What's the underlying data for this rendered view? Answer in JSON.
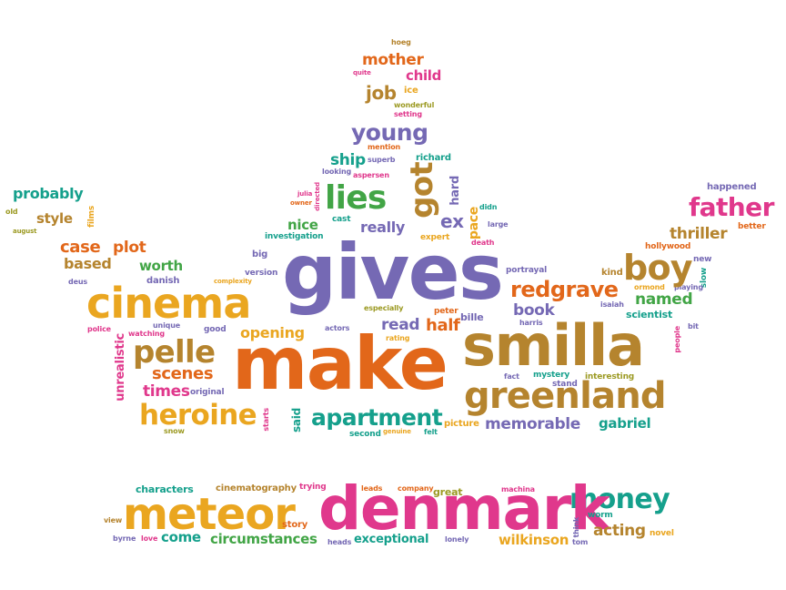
{
  "colors": {
    "purple": "#7569b4",
    "orange": "#e2671a",
    "gold": "#eaa620",
    "brown": "#b5842e",
    "green": "#42a546",
    "teal": "#15a08c",
    "magenta": "#e0388c",
    "olive": "#9c9a23"
  },
  "words": [
    {
      "text": "hoeg",
      "color": "brown"
    },
    {
      "text": "mother",
      "color": "orange"
    },
    {
      "text": "quite",
      "color": "magenta"
    },
    {
      "text": "child",
      "color": "magenta"
    },
    {
      "text": "job",
      "color": "brown"
    },
    {
      "text": "ice",
      "color": "gold"
    },
    {
      "text": "wonderful",
      "color": "olive"
    },
    {
      "text": "setting",
      "color": "magenta"
    },
    {
      "text": "young",
      "color": "purple"
    },
    {
      "text": "mention",
      "color": "orange"
    },
    {
      "text": "ship",
      "color": "teal"
    },
    {
      "text": "superb",
      "color": "purple"
    },
    {
      "text": "richard",
      "color": "teal"
    },
    {
      "text": "looking",
      "color": "purple"
    },
    {
      "text": "aspersen",
      "color": "magenta"
    },
    {
      "text": "got",
      "color": "brown"
    },
    {
      "text": "hard",
      "color": "purple"
    },
    {
      "text": "lies",
      "color": "green"
    },
    {
      "text": "julia",
      "color": "magenta"
    },
    {
      "text": "owner",
      "color": "orange"
    },
    {
      "text": "directed",
      "color": "magenta"
    },
    {
      "text": "cast",
      "color": "teal"
    },
    {
      "text": "didn",
      "color": "teal"
    },
    {
      "text": "ex",
      "color": "purple"
    },
    {
      "text": "pace",
      "color": "gold"
    },
    {
      "text": "large",
      "color": "purple"
    },
    {
      "text": "nice",
      "color": "green"
    },
    {
      "text": "really",
      "color": "purple"
    },
    {
      "text": "investigation",
      "color": "teal"
    },
    {
      "text": "expert",
      "color": "gold"
    },
    {
      "text": "death",
      "color": "magenta"
    },
    {
      "text": "probably",
      "color": "teal"
    },
    {
      "text": "old",
      "color": "olive"
    },
    {
      "text": "style",
      "color": "brown"
    },
    {
      "text": "films",
      "color": "gold"
    },
    {
      "text": "august",
      "color": "olive"
    },
    {
      "text": "case",
      "color": "orange"
    },
    {
      "text": "plot",
      "color": "orange"
    },
    {
      "text": "based",
      "color": "brown"
    },
    {
      "text": "worth",
      "color": "green"
    },
    {
      "text": "big",
      "color": "purple"
    },
    {
      "text": "version",
      "color": "purple"
    },
    {
      "text": "complexity",
      "color": "gold"
    },
    {
      "text": "deus",
      "color": "purple"
    },
    {
      "text": "danish",
      "color": "purple"
    },
    {
      "text": "cinema",
      "color": "gold"
    },
    {
      "text": "gives",
      "color": "purple"
    },
    {
      "text": "happened",
      "color": "purple"
    },
    {
      "text": "father",
      "color": "magenta"
    },
    {
      "text": "better",
      "color": "orange"
    },
    {
      "text": "thriller",
      "color": "brown"
    },
    {
      "text": "hollywood",
      "color": "orange"
    },
    {
      "text": "new",
      "color": "purple"
    },
    {
      "text": "slow",
      "color": "teal"
    },
    {
      "text": "kind",
      "color": "brown"
    },
    {
      "text": "ormond",
      "color": "gold"
    },
    {
      "text": "playing",
      "color": "purple"
    },
    {
      "text": "boy",
      "color": "brown"
    },
    {
      "text": "portrayal",
      "color": "purple"
    },
    {
      "text": "redgrave",
      "color": "orange"
    },
    {
      "text": "named",
      "color": "green"
    },
    {
      "text": "isaiah",
      "color": "purple"
    },
    {
      "text": "scientist",
      "color": "teal"
    },
    {
      "text": "bit",
      "color": "purple"
    },
    {
      "text": "people",
      "color": "magenta"
    },
    {
      "text": "book",
      "color": "purple"
    },
    {
      "text": "harris",
      "color": "purple"
    },
    {
      "text": "peter",
      "color": "orange"
    },
    {
      "text": "bille",
      "color": "purple"
    },
    {
      "text": "especially",
      "color": "olive"
    },
    {
      "text": "half",
      "color": "orange"
    },
    {
      "text": "read",
      "color": "purple"
    },
    {
      "text": "rating",
      "color": "gold"
    },
    {
      "text": "actors",
      "color": "purple"
    },
    {
      "text": "good",
      "color": "purple"
    },
    {
      "text": "unique",
      "color": "purple"
    },
    {
      "text": "police",
      "color": "magenta"
    },
    {
      "text": "watching",
      "color": "magenta"
    },
    {
      "text": "opening",
      "color": "gold"
    },
    {
      "text": "pelle",
      "color": "brown"
    },
    {
      "text": "unrealistic",
      "color": "magenta"
    },
    {
      "text": "scenes",
      "color": "orange"
    },
    {
      "text": "make",
      "color": "orange"
    },
    {
      "text": "smilla",
      "color": "brown"
    },
    {
      "text": "fact",
      "color": "purple"
    },
    {
      "text": "mystery",
      "color": "teal"
    },
    {
      "text": "interesting",
      "color": "olive"
    },
    {
      "text": "stand",
      "color": "purple"
    },
    {
      "text": "times",
      "color": "magenta"
    },
    {
      "text": "original",
      "color": "purple"
    },
    {
      "text": "greenland",
      "color": "brown"
    },
    {
      "text": "heroine",
      "color": "gold"
    },
    {
      "text": "said",
      "color": "teal"
    },
    {
      "text": "starts",
      "color": "magenta"
    },
    {
      "text": "apartment",
      "color": "teal"
    },
    {
      "text": "snow",
      "color": "olive"
    },
    {
      "text": "memorable",
      "color": "purple"
    },
    {
      "text": "gabriel",
      "color": "teal"
    },
    {
      "text": "picture",
      "color": "gold"
    },
    {
      "text": "second",
      "color": "teal"
    },
    {
      "text": "genuine",
      "color": "gold"
    },
    {
      "text": "felt",
      "color": "teal"
    },
    {
      "text": "characters",
      "color": "teal"
    },
    {
      "text": "cinematography",
      "color": "brown"
    },
    {
      "text": "trying",
      "color": "magenta"
    },
    {
      "text": "leads",
      "color": "orange"
    },
    {
      "text": "company",
      "color": "orange"
    },
    {
      "text": "great",
      "color": "olive"
    },
    {
      "text": "machina",
      "color": "magenta"
    },
    {
      "text": "money",
      "color": "teal"
    },
    {
      "text": "meteor",
      "color": "gold"
    },
    {
      "text": "denmark",
      "color": "magenta"
    },
    {
      "text": "think",
      "color": "purple"
    },
    {
      "text": "worm",
      "color": "teal"
    },
    {
      "text": "view",
      "color": "brown"
    },
    {
      "text": "story",
      "color": "orange"
    },
    {
      "text": "acting",
      "color": "brown"
    },
    {
      "text": "novel",
      "color": "gold"
    },
    {
      "text": "byrne",
      "color": "purple"
    },
    {
      "text": "love",
      "color": "magenta"
    },
    {
      "text": "come",
      "color": "teal"
    },
    {
      "text": "circumstances",
      "color": "green"
    },
    {
      "text": "heads",
      "color": "purple"
    },
    {
      "text": "exceptional",
      "color": "teal"
    },
    {
      "text": "lonely",
      "color": "purple"
    },
    {
      "text": "wilkinson",
      "color": "gold"
    },
    {
      "text": "tom",
      "color": "purple"
    }
  ]
}
